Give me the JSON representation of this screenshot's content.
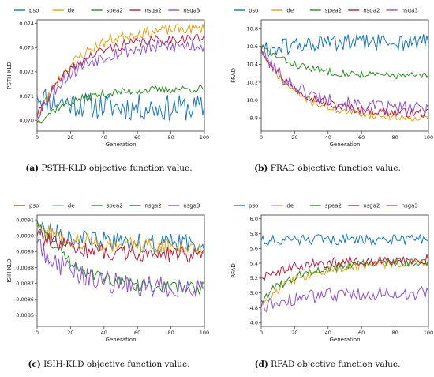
{
  "colors": {
    "pso": "#1f77b4",
    "de": "#e0a21b",
    "spea2": "#2e8b28",
    "nsga2": "#b22246",
    "nsga3": "#8e55c8"
  },
  "legend": [
    "pso",
    "de",
    "spea2",
    "nsga2",
    "nsga3"
  ],
  "chart_data": [
    {
      "type": "line",
      "caption_label": "(a)",
      "caption_text": "PSTH-KLD objective function value.",
      "xlabel": "Generation",
      "ylabel": "PSTH-KLD",
      "xlim": [
        0,
        100
      ],
      "ylim": [
        0.06955,
        0.07415
      ],
      "xticks": [
        0,
        20,
        40,
        60,
        80,
        100
      ],
      "yticks": [
        0.07,
        0.071,
        0.072,
        0.073,
        0.074
      ],
      "ytick_labels": [
        "0.070",
        "0.071",
        "0.072",
        "0.073",
        "0.074"
      ],
      "grid": false,
      "legend_position": "top",
      "series": [
        {
          "name": "pso",
          "start": 0.071,
          "end": 0.0705,
          "noise": 0.00055,
          "seed": 11
        },
        {
          "name": "de",
          "start": 0.07,
          "end": 0.0738,
          "noise": 0.00022,
          "seed": 23
        },
        {
          "name": "spea2",
          "start": 0.0699,
          "end": 0.0713,
          "noise": 0.00016,
          "seed": 37
        },
        {
          "name": "nsga2",
          "start": 0.0701,
          "end": 0.0734,
          "noise": 0.0002,
          "seed": 41
        },
        {
          "name": "nsga3",
          "start": 0.0702,
          "end": 0.0731,
          "noise": 0.0003,
          "seed": 53
        }
      ]
    },
    {
      "type": "line",
      "caption_label": "(b)",
      "caption_text": "FRAD objective function value.",
      "xlabel": "Generation",
      "ylabel": "FRAD",
      "xlim": [
        0,
        100
      ],
      "ylim": [
        9.65,
        10.9
      ],
      "xticks": [
        0,
        20,
        40,
        60,
        80,
        100
      ],
      "yticks": [
        9.8,
        10.0,
        10.2,
        10.4,
        10.6,
        10.8
      ],
      "ytick_labels": [
        "9.8",
        "10.0",
        "10.2",
        "10.4",
        "10.6",
        "10.8"
      ],
      "grid": false,
      "legend_position": "top",
      "series": [
        {
          "name": "pso",
          "start": 10.55,
          "end": 10.65,
          "noise": 0.1,
          "seed": 61
        },
        {
          "name": "de",
          "start": 10.55,
          "end": 9.8,
          "noise": 0.04,
          "seed": 71
        },
        {
          "name": "spea2",
          "start": 10.6,
          "end": 10.27,
          "noise": 0.04,
          "seed": 83
        },
        {
          "name": "nsga2",
          "start": 10.58,
          "end": 9.85,
          "noise": 0.05,
          "seed": 97
        },
        {
          "name": "nsga3",
          "start": 10.55,
          "end": 9.9,
          "noise": 0.08,
          "seed": 101
        }
      ]
    },
    {
      "type": "line",
      "caption_label": "(c)",
      "caption_text": "ISIH-KLD objective function value.",
      "xlabel": "Generation",
      "ylabel": "ISIH-KLD",
      "xlim": [
        0,
        100
      ],
      "ylim": [
        0.00843,
        0.00913
      ],
      "xticks": [
        0,
        20,
        40,
        60,
        80,
        100
      ],
      "yticks": [
        0.0085,
        0.0086,
        0.0087,
        0.0088,
        0.0089,
        0.009,
        0.0091
      ],
      "ytick_labels": [
        "0.0085",
        "0.0086",
        "0.0087",
        "0.0088",
        "0.0089",
        "0.0090",
        "0.0091"
      ],
      "grid": false,
      "legend_position": "top",
      "series": [
        {
          "name": "pso",
          "start": 0.00905,
          "end": 0.00895,
          "noise": 6e-05,
          "seed": 113
        },
        {
          "name": "de",
          "start": 0.00905,
          "end": 0.00893,
          "noise": 5e-05,
          "seed": 127
        },
        {
          "name": "spea2",
          "start": 0.0091,
          "end": 0.00867,
          "noise": 4e-05,
          "seed": 131
        },
        {
          "name": "nsga2",
          "start": 0.009,
          "end": 0.00888,
          "noise": 5e-05,
          "seed": 139
        },
        {
          "name": "nsga3",
          "start": 0.00895,
          "end": 0.00867,
          "noise": 7e-05,
          "seed": 149
        }
      ]
    },
    {
      "type": "line",
      "caption_label": "(d)",
      "caption_text": "RFAD objective function value.",
      "xlabel": "Generation",
      "ylabel": "RFAD",
      "xlim": [
        0,
        100
      ],
      "ylim": [
        4.55,
        6.05
      ],
      "xticks": [
        0,
        20,
        40,
        60,
        80,
        100
      ],
      "yticks": [
        4.6,
        4.8,
        5.0,
        5.2,
        5.4,
        5.6,
        5.8,
        6.0
      ],
      "ytick_labels": [
        "4.6",
        "4.8",
        "5.0",
        "5.2",
        "5.4",
        "5.6",
        "5.8",
        "6.0"
      ],
      "grid": false,
      "legend_position": "top",
      "series": [
        {
          "name": "pso",
          "start": 5.7,
          "end": 5.72,
          "noise": 0.07,
          "seed": 151
        },
        {
          "name": "de",
          "start": 4.85,
          "end": 5.4,
          "noise": 0.06,
          "seed": 157
        },
        {
          "name": "spea2",
          "start": 4.9,
          "end": 5.42,
          "noise": 0.06,
          "seed": 163
        },
        {
          "name": "nsga2",
          "start": 5.2,
          "end": 5.45,
          "noise": 0.07,
          "seed": 167
        },
        {
          "name": "nsga3",
          "start": 4.8,
          "end": 5.0,
          "noise": 0.09,
          "seed": 173
        }
      ]
    }
  ]
}
